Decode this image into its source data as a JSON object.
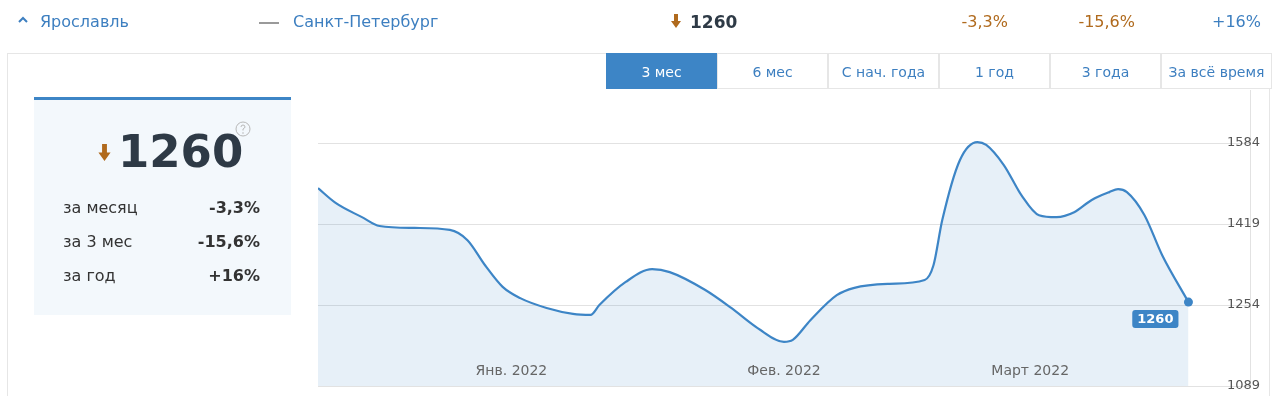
{
  "chart_data": {
    "type": "area",
    "title": "Ярославль",
    "annotations": [
      "Санкт-Петербург",
      "1260",
      "-3,3%",
      "-15,6%",
      "+16%",
      "1260",
      "за месяц",
      "-3,3%",
      "за 3 мес",
      "-15,6%",
      "за год",
      "+16%",
      "3 мес",
      "6 мес",
      "С нач. года",
      "1 год",
      "3 года",
      "За всё время"
    ],
    "x": [
      "2021-12-10",
      "2021-12-12",
      "2021-12-15",
      "2021-12-17",
      "2021-12-21",
      "2021-12-25",
      "2021-12-27",
      "2021-12-29",
      "2021-12-31",
      "2022-01-02",
      "2022-01-05",
      "2022-01-08",
      "2022-01-10",
      "2022-01-11",
      "2022-01-14",
      "2022-01-17",
      "2022-01-19",
      "2022-01-23",
      "2022-01-26",
      "2022-01-29",
      "2022-02-01",
      "2022-02-02",
      "2022-02-04",
      "2022-02-07",
      "2022-02-09",
      "2022-02-13",
      "2022-02-17",
      "2022-02-18",
      "2022-02-19",
      "2022-02-21",
      "2022-02-23",
      "2022-02-24",
      "2022-02-26",
      "2022-02-28",
      "2022-03-02",
      "2022-03-04",
      "2022-03-06",
      "2022-03-08",
      "2022-03-10",
      "2022-03-11",
      "2022-03-12",
      "2022-03-14",
      "2022-03-16",
      "2022-03-19"
    ],
    "series": [
      {
        "color": "#3d85c6",
        "values": [
          1492,
          1462,
          1433,
          1415,
          1411,
          1407,
          1386,
          1335,
          1291,
          1268,
          1248,
          1236,
          1234,
          1254,
          1301,
          1327,
          1321,
          1285,
          1248,
          1207,
          1179,
          1183,
          1223,
          1274,
          1289,
          1297,
          1305,
          1335,
          1427,
          1549,
          1586,
          1580,
          1539,
          1478,
          1437,
          1433,
          1443,
          1468,
          1484,
          1490,
          1484,
          1437,
          1356,
          1260
        ],
        "value_labels": [
          null,
          null,
          null,
          null,
          null,
          null,
          null,
          null,
          null,
          null,
          null,
          null,
          null,
          null,
          null,
          null,
          null,
          null,
          null,
          null,
          null,
          null,
          null,
          null,
          null,
          null,
          null,
          null,
          null,
          null,
          null,
          null,
          null,
          null,
          null,
          null,
          null,
          null,
          null,
          null,
          null,
          null,
          null,
          "1260"
        ]
      }
    ],
    "xlim": [
      "2021-12-10",
      "2022-03-26"
    ],
    "xticks": [
      {
        "value": "2022-01-01",
        "label": "Янв. 2022"
      },
      {
        "value": "2022-02-01",
        "label": "Фев. 2022"
      },
      {
        "value": "2022-03-01",
        "label": "Март 2022"
      }
    ],
    "ylim": [
      1089,
      1692
    ],
    "yticks": [
      1089,
      1254,
      1419,
      1584
    ],
    "grid": "y",
    "legend": false
  }
}
